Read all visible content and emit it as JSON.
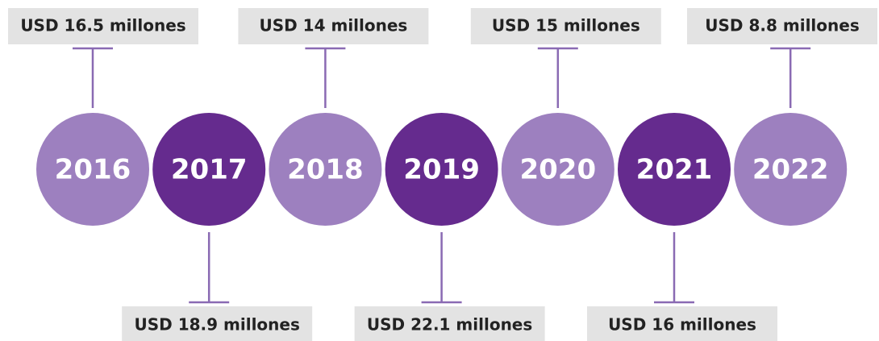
{
  "items": [
    {
      "year": "2016",
      "label": "USD 16.5 millones"
    },
    {
      "year": "2017",
      "label": "USD 18.9 millones"
    },
    {
      "year": "2018",
      "label": "USD 14 millones"
    },
    {
      "year": "2019",
      "label": "USD 22.1 millones"
    },
    {
      "year": "2020",
      "label": "USD 15 millones"
    },
    {
      "year": "2021",
      "label": "USD 16 millones"
    },
    {
      "year": "2022",
      "label": "USD 8.8 millones"
    }
  ]
}
